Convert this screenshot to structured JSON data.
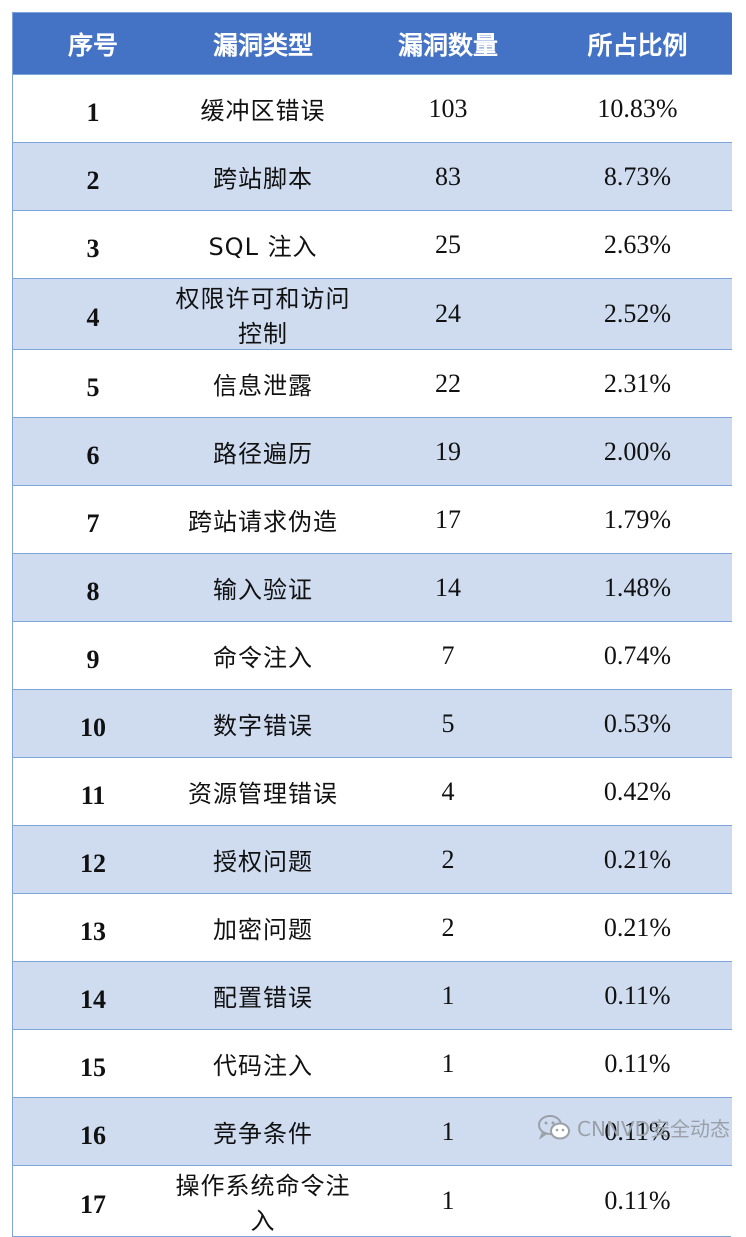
{
  "table": {
    "headers": [
      "序号",
      "漏洞类型",
      "漏洞数量",
      "所占比例"
    ],
    "rows": [
      {
        "index": "1",
        "type": "缓冲区错误",
        "count": "103",
        "percent": "10.83%"
      },
      {
        "index": "2",
        "type": "跨站脚本",
        "count": "83",
        "percent": "8.73%"
      },
      {
        "index": "3",
        "type": "SQL 注入",
        "count": "25",
        "percent": "2.63%"
      },
      {
        "index": "4",
        "type": "权限许可和访问控制",
        "count": "24",
        "percent": "2.52%"
      },
      {
        "index": "5",
        "type": "信息泄露",
        "count": "22",
        "percent": "2.31%"
      },
      {
        "index": "6",
        "type": "路径遍历",
        "count": "19",
        "percent": "2.00%"
      },
      {
        "index": "7",
        "type": "跨站请求伪造",
        "count": "17",
        "percent": "1.79%"
      },
      {
        "index": "8",
        "type": "输入验证",
        "count": "14",
        "percent": "1.48%"
      },
      {
        "index": "9",
        "type": "命令注入",
        "count": "7",
        "percent": "0.74%"
      },
      {
        "index": "10",
        "type": "数字错误",
        "count": "5",
        "percent": "0.53%"
      },
      {
        "index": "11",
        "type": "资源管理错误",
        "count": "4",
        "percent": "0.42%"
      },
      {
        "index": "12",
        "type": "授权问题",
        "count": "2",
        "percent": "0.21%"
      },
      {
        "index": "13",
        "type": "加密问题",
        "count": "2",
        "percent": "0.21%"
      },
      {
        "index": "14",
        "type": "配置错误",
        "count": "1",
        "percent": "0.11%"
      },
      {
        "index": "15",
        "type": "代码注入",
        "count": "1",
        "percent": "0.11%"
      },
      {
        "index": "16",
        "type": "竞争条件",
        "count": "1",
        "percent": "0.11%"
      },
      {
        "index": "17",
        "type": "操作系统命令注入",
        "count": "1",
        "percent": "0.11%"
      }
    ]
  },
  "watermark": {
    "text": "CNNVD安全动态",
    "icon": "wechat-icon",
    "color": "#9aa0a8"
  },
  "colors": {
    "header_bg": "#4472c4",
    "stripe_bg": "#cfdcf0",
    "border": "#7ea6dc"
  }
}
